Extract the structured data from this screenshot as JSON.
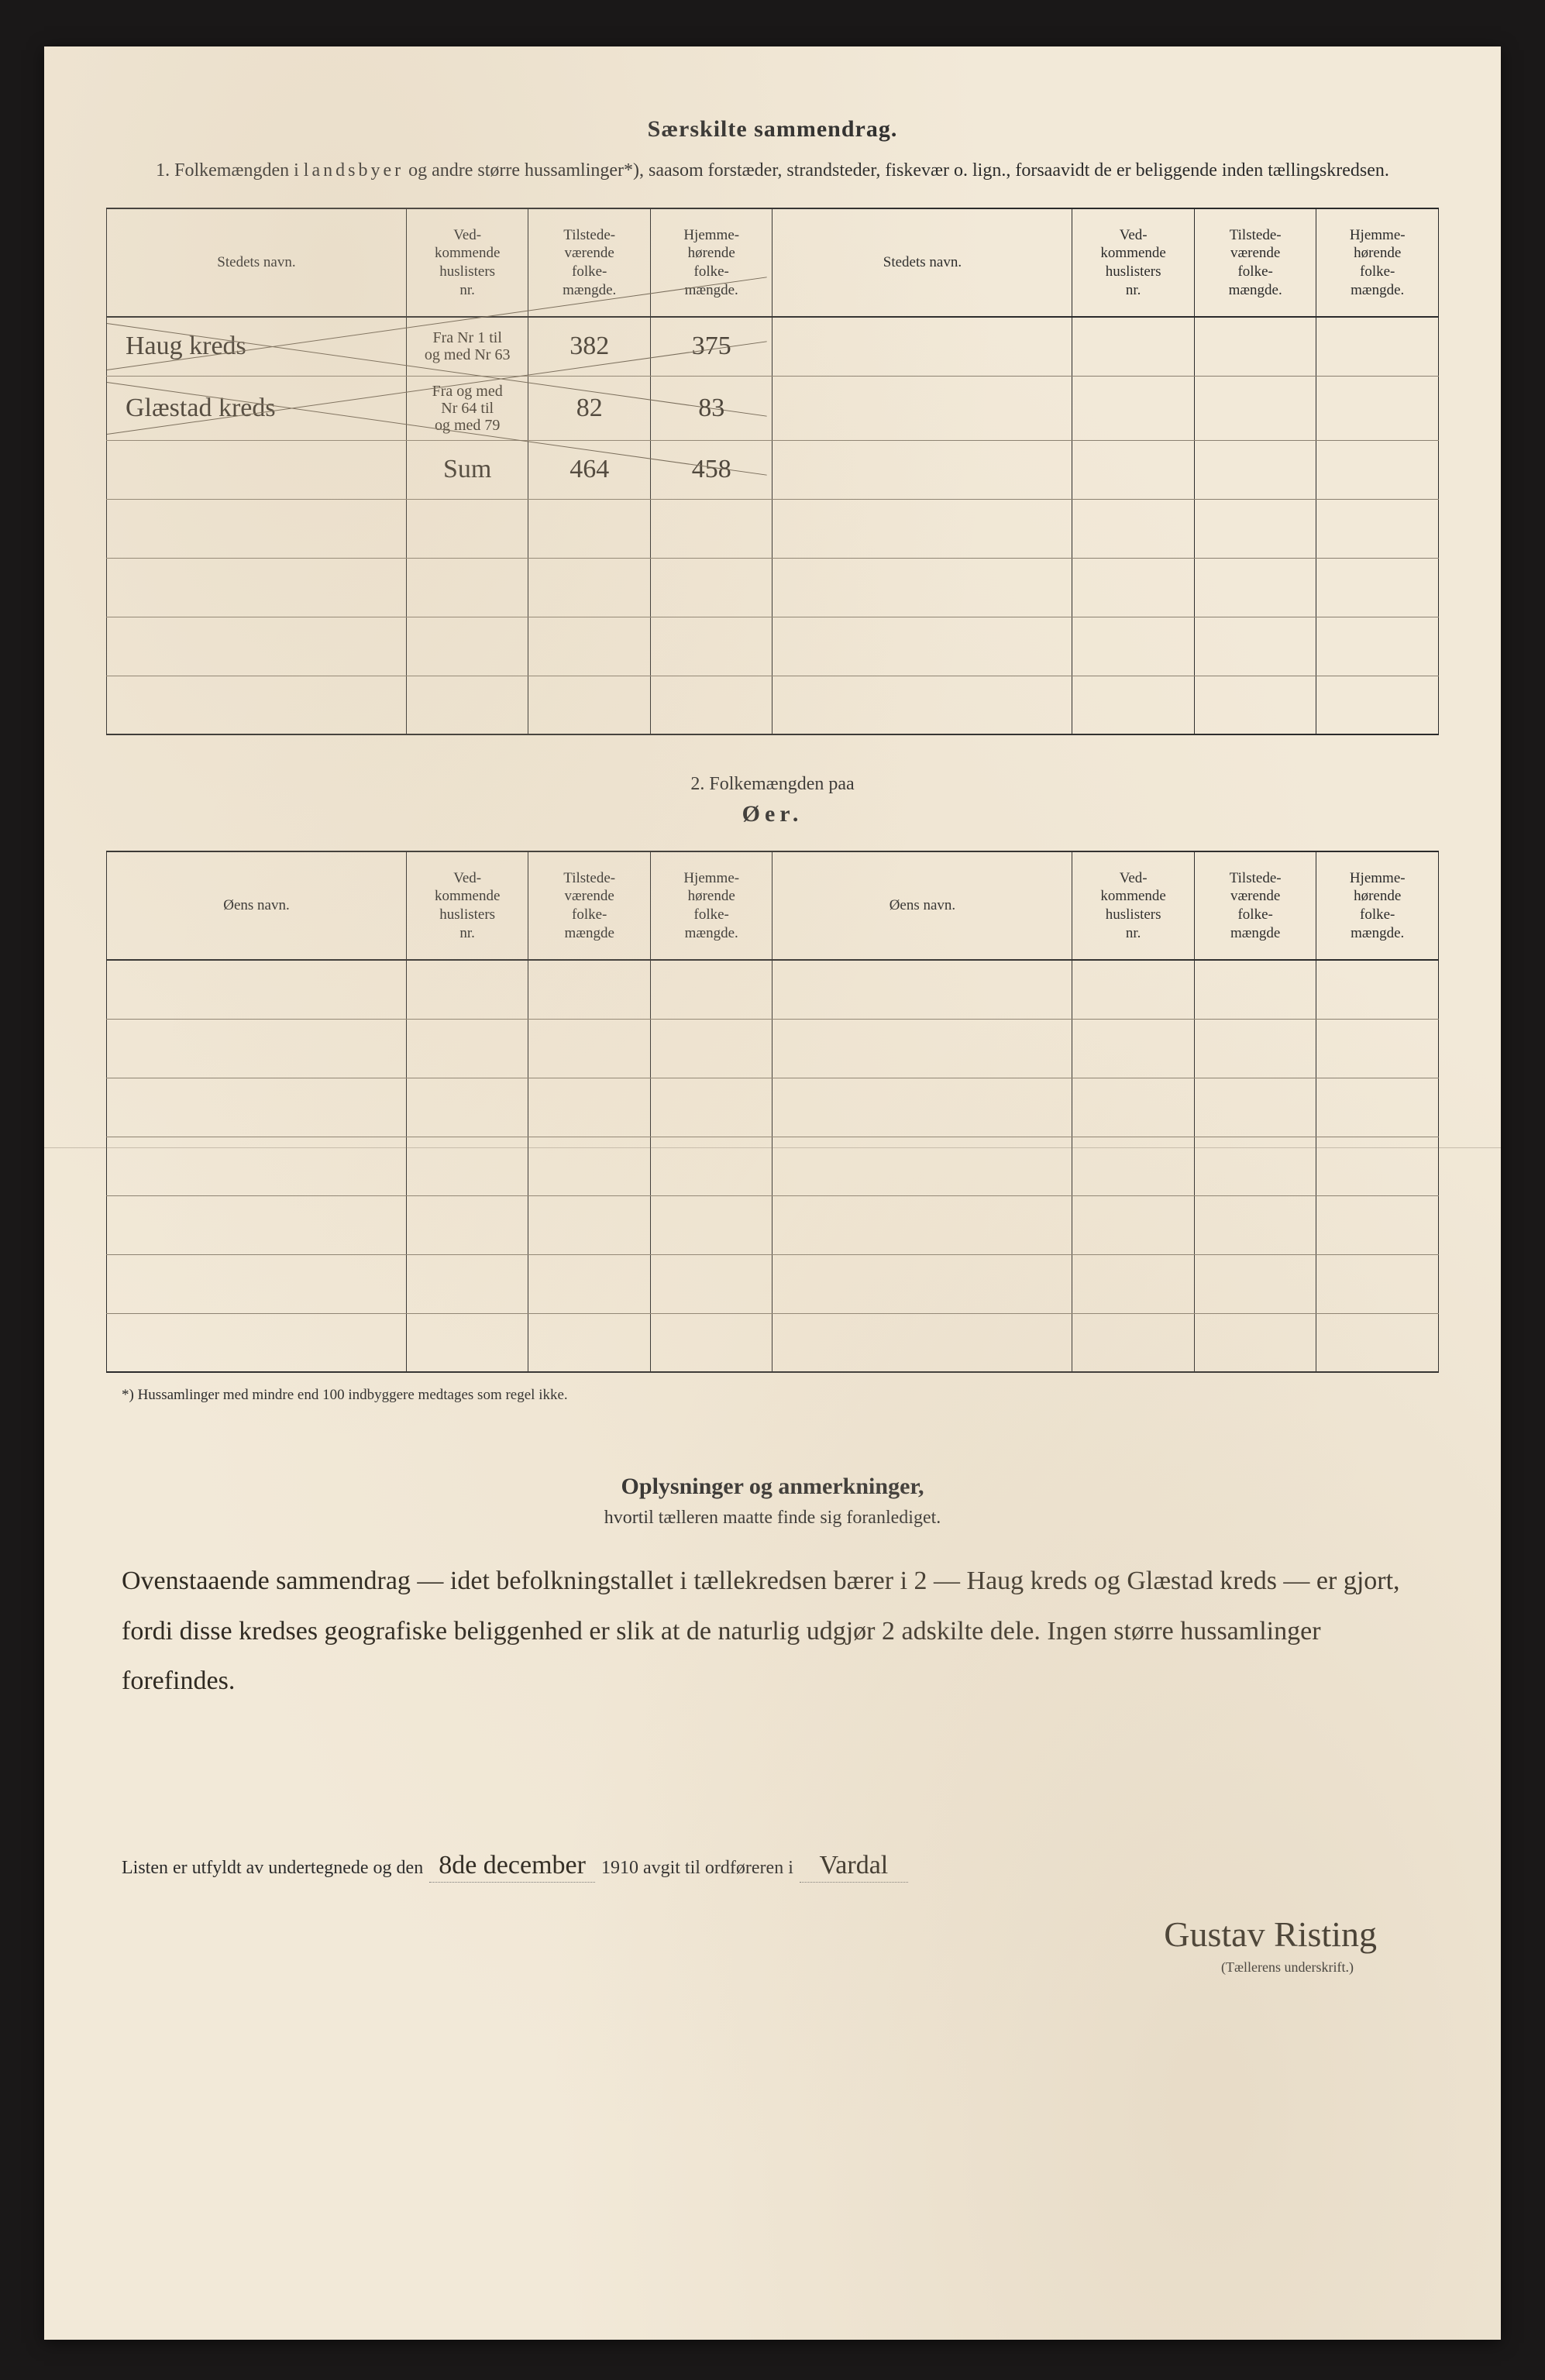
{
  "colors": {
    "frame_bg": "#1a1818",
    "paper_bg": "#f2e9d8",
    "ink": "#2b2b2b",
    "handwriting": "#2f2a22",
    "rule_light": "#8a8070"
  },
  "typography": {
    "print_family": "Georgia, 'Times New Roman', serif",
    "hand_family": "'Brush Script MT', 'Segoe Script', cursive",
    "title_size_pt": 22,
    "body_size_pt": 18,
    "header_cell_size_pt": 14,
    "handwriting_size_pt": 26
  },
  "section1": {
    "title": "Særskilte sammendrag.",
    "intro_prefix": "1.  Folkemængden i ",
    "intro_spaced": "landsbyer",
    "intro_suffix": " og andre større hussamlinger*), saasom forstæder, strandsteder, fiskevær o. lign., forsaavidt de er beliggende inden tællingskredsen."
  },
  "table1": {
    "type": "table",
    "columns_left": {
      "name": "Stedets navn.",
      "huslister": "Ved-\nkommende\nhuslisters\nnr.",
      "tilstede": "Tilstede-\nværende\nfolke-\nmængde.",
      "hjemme": "Hjemme-\nhørende\nfolke-\nmængde."
    },
    "columns_right": {
      "name": "Stedets navn.",
      "huslister": "Ved-\nkommende\nhuslisters\nnr.",
      "tilstede": "Tilstede-\nværende\nfolke-\nmængde.",
      "hjemme": "Hjemme-\nhørende\nfolke-\nmængde."
    },
    "rows": [
      {
        "crossed": true,
        "name": "Haug kreds",
        "huslisters": "Fra Nr 1 til\nog med Nr 63",
        "tilstede": "382",
        "hjemme": "375"
      },
      {
        "crossed": true,
        "name": "Glæstad kreds",
        "huslisters": "Fra og med\nNr 64 til\nog med 79",
        "tilstede": "82",
        "hjemme": "83"
      },
      {
        "crossed": false,
        "name": "",
        "sum_label": "Sum",
        "tilstede": "464",
        "hjemme": "458"
      },
      {
        "crossed": false,
        "name": "",
        "huslisters": "",
        "tilstede": "",
        "hjemme": ""
      },
      {
        "crossed": false,
        "name": "",
        "huslisters": "",
        "tilstede": "",
        "hjemme": ""
      },
      {
        "crossed": false,
        "name": "",
        "huslisters": "",
        "tilstede": "",
        "hjemme": ""
      },
      {
        "crossed": false,
        "name": "",
        "huslisters": "",
        "tilstede": "",
        "hjemme": ""
      }
    ]
  },
  "section2": {
    "heading_num": "2.  Folkemængden paa",
    "heading_word": "Øer."
  },
  "table2": {
    "type": "table",
    "columns_left": {
      "name": "Øens navn.",
      "huslister": "Ved-\nkommende\nhuslisters\nnr.",
      "tilstede": "Tilstede-\nværende\nfolke-\nmængde",
      "hjemme": "Hjemme-\nhørende\nfolke-\nmængde."
    },
    "columns_right": {
      "name": "Øens navn.",
      "huslister": "Ved-\nkommende\nhuslisters\nnr.",
      "tilstede": "Tilstede-\nværende\nfolke-\nmængde",
      "hjemme": "Hjemme-\nhørende\nfolke-\nmængde."
    },
    "empty_row_count": 7
  },
  "footnote": "*) Hussamlinger med mindre end 100 indbyggere medtages som regel ikke.",
  "remarks": {
    "title": "Oplysninger og anmerkninger,",
    "sub": "hvortil tælleren maatte finde sig foranlediget.",
    "body": "Ovenstaaende sammendrag — idet befolkningstallet i tællekredsen bærer i 2 — Haug kreds og Glæstad kreds — er gjort, fordi disse kredses geografiske beliggenhed er slik at de naturlig udgjør 2 adskilte dele. Ingen større hussamlinger forefindes."
  },
  "signature": {
    "line_prefix": "Listen er utfyldt av undertegnede og den",
    "date": "8de december",
    "year_text": "1910 avgit til ordføreren i",
    "place": "Vardal",
    "name": "Gustav Risting",
    "caption": "(Tællerens underskrift.)"
  }
}
